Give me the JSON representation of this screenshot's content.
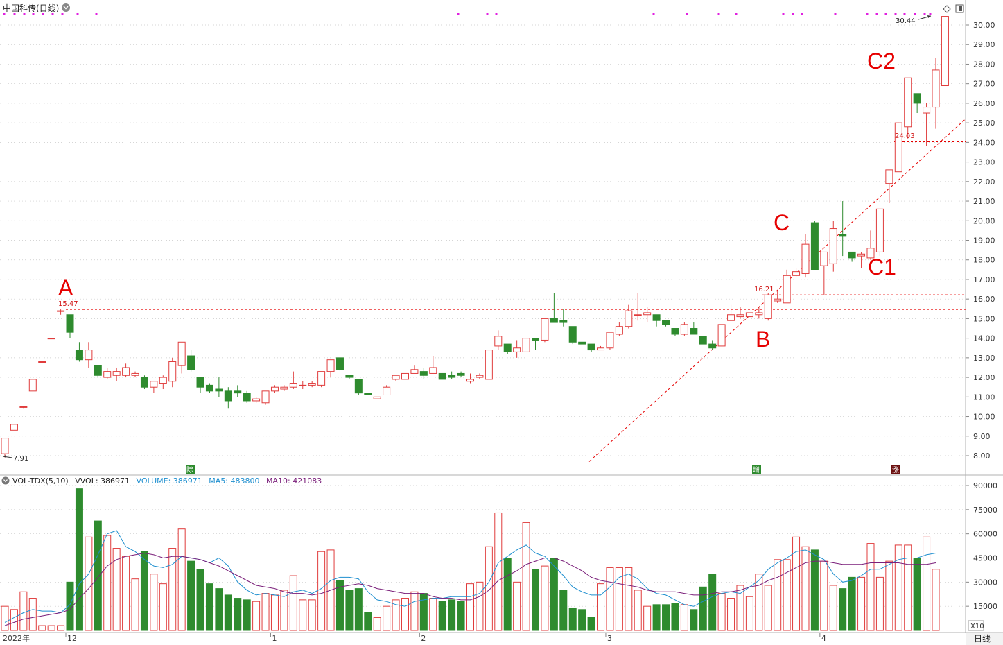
{
  "header": {
    "title": "中国科传(日线)",
    "period_label": "日线"
  },
  "volume_header": {
    "indicator": "VOL-TDX(5,10)",
    "vvol": "VVOL: 386971",
    "volume": "VOLUME: 386971",
    "ma5": "MA5: 483800",
    "ma10": "MA10: 421083"
  },
  "colors": {
    "up": "#e03c3c",
    "down": "#2e8b2e",
    "ma5": "#1f8fcf",
    "ma10": "#7a1f7a",
    "annotation": "#e60000",
    "marker": "#e020e0"
  },
  "chart_data": [
    {
      "type": "candlestick",
      "price_axis": {
        "ticks": [
          "30.00",
          "29.00",
          "28.00",
          "27.00",
          "26.00",
          "25.00",
          "24.00",
          "23.00",
          "22.00",
          "21.00",
          "20.00",
          "19.00",
          "18.00",
          "17.00",
          "16.00",
          "15.00",
          "14.00",
          "13.00",
          "12.00",
          "11.00",
          "10.00",
          "9.00",
          "8.00"
        ],
        "ylim": [
          7.5,
          30.8
        ]
      },
      "time_axis": {
        "labels": [
          {
            "text": "2022年",
            "index": 0
          },
          {
            "text": "12",
            "index": 7
          },
          {
            "text": "1",
            "index": 29
          },
          {
            "text": "2",
            "index": 45
          },
          {
            "text": "3",
            "index": 65
          },
          {
            "text": "4",
            "index": 88
          }
        ]
      },
      "candles": [
        [
          8.1,
          7.91,
          8.9,
          8.9
        ],
        [
          9.3,
          9.3,
          9.6,
          9.6
        ],
        [
          10.5,
          10.4,
          10.5,
          10.5
        ],
        [
          11.3,
          11.3,
          11.9,
          11.9
        ],
        [
          12.8,
          12.8,
          12.8,
          12.8
        ],
        [
          14.0,
          14.0,
          14.0,
          14.0
        ],
        [
          15.4,
          15.2,
          15.47,
          15.4
        ],
        [
          15.2,
          14.0,
          15.2,
          14.3
        ],
        [
          13.4,
          12.8,
          13.8,
          12.9
        ],
        [
          12.9,
          12.5,
          13.8,
          13.4
        ],
        [
          12.6,
          12.0,
          12.6,
          12.1
        ],
        [
          12.0,
          11.9,
          12.5,
          12.3
        ],
        [
          12.1,
          11.8,
          12.5,
          12.3
        ],
        [
          12.1,
          12.0,
          12.7,
          12.5
        ],
        [
          12.1,
          12.0,
          12.3,
          12.2
        ],
        [
          12.0,
          11.4,
          12.1,
          11.5
        ],
        [
          11.5,
          11.2,
          11.8,
          11.8
        ],
        [
          11.7,
          11.4,
          12.1,
          12.0
        ],
        [
          11.8,
          11.5,
          13.0,
          12.8
        ],
        [
          12.6,
          12.2,
          13.8,
          13.8
        ],
        [
          13.1,
          12.3,
          13.4,
          12.4
        ],
        [
          12.0,
          11.2,
          12.0,
          11.5
        ],
        [
          11.6,
          11.2,
          11.7,
          11.3
        ],
        [
          11.4,
          11.0,
          12.0,
          11.3
        ],
        [
          11.3,
          10.4,
          11.5,
          10.8
        ],
        [
          11.3,
          11.0,
          11.6,
          11.2
        ],
        [
          11.2,
          10.7,
          11.3,
          10.8
        ],
        [
          10.8,
          10.7,
          11.0,
          10.9
        ],
        [
          10.7,
          10.6,
          11.3,
          11.3
        ],
        [
          11.3,
          11.2,
          11.6,
          11.5
        ],
        [
          11.4,
          11.3,
          11.6,
          11.5
        ],
        [
          11.5,
          11.4,
          12.3,
          11.7
        ],
        [
          11.6,
          11.4,
          11.8,
          11.6
        ],
        [
          11.6,
          11.5,
          11.8,
          11.7
        ],
        [
          11.6,
          11.5,
          12.3,
          12.3
        ],
        [
          12.3,
          12.0,
          12.8,
          12.9
        ],
        [
          13.0,
          12.3,
          13.0,
          12.4
        ],
        [
          12.1,
          11.9,
          12.1,
          12.0
        ],
        [
          11.9,
          11.1,
          11.9,
          11.2
        ],
        [
          11.2,
          11.1,
          11.2,
          11.1
        ],
        [
          10.9,
          10.9,
          11.0,
          11.0
        ],
        [
          11.1,
          11.1,
          11.6,
          11.5
        ],
        [
          11.9,
          11.8,
          12.0,
          12.1
        ],
        [
          11.9,
          11.9,
          12.3,
          12.2
        ],
        [
          12.2,
          12.2,
          12.6,
          12.4
        ],
        [
          12.3,
          11.9,
          12.5,
          12.1
        ],
        [
          12.2,
          12.2,
          13.1,
          12.5
        ],
        [
          12.2,
          11.9,
          12.2,
          11.9
        ],
        [
          12.1,
          11.9,
          12.3,
          12.0
        ],
        [
          12.2,
          12.0,
          12.3,
          12.1
        ],
        [
          11.8,
          11.7,
          12.2,
          11.9
        ],
        [
          12.0,
          11.9,
          12.2,
          12.1
        ],
        [
          11.9,
          11.9,
          13.4,
          13.4
        ],
        [
          13.6,
          13.4,
          14.4,
          14.1
        ],
        [
          13.7,
          13.2,
          13.7,
          13.3
        ],
        [
          13.3,
          13.0,
          13.9,
          13.5
        ],
        [
          13.3,
          13.3,
          14.0,
          14.0
        ],
        [
          14.0,
          13.4,
          14.0,
          13.9
        ],
        [
          13.9,
          13.8,
          15.0,
          15.0
        ],
        [
          15.0,
          14.8,
          16.3,
          14.8
        ],
        [
          14.9,
          14.6,
          15.5,
          14.8
        ],
        [
          14.6,
          13.7,
          14.6,
          13.8
        ],
        [
          13.8,
          13.7,
          13.8,
          13.7
        ],
        [
          13.7,
          13.3,
          13.7,
          13.4
        ],
        [
          13.4,
          13.4,
          13.6,
          13.5
        ],
        [
          13.5,
          13.4,
          14.3,
          14.3
        ],
        [
          14.2,
          14.1,
          14.8,
          14.6
        ],
        [
          14.6,
          14.5,
          15.7,
          15.4
        ],
        [
          15.2,
          14.9,
          16.3,
          15.2
        ],
        [
          15.2,
          14.8,
          15.6,
          15.3
        ],
        [
          15.2,
          14.6,
          15.2,
          14.9
        ],
        [
          14.9,
          14.6,
          14.9,
          14.7
        ],
        [
          14.5,
          14.1,
          14.5,
          14.2
        ],
        [
          14.2,
          14.1,
          14.8,
          14.7
        ],
        [
          14.5,
          14.2,
          14.8,
          14.2
        ],
        [
          14.1,
          13.7,
          14.1,
          13.7
        ],
        [
          13.7,
          13.4,
          13.9,
          13.5
        ],
        [
          13.6,
          13.6,
          14.7,
          14.7
        ],
        [
          14.9,
          14.9,
          15.7,
          15.2
        ],
        [
          15.1,
          15.0,
          15.6,
          15.2
        ],
        [
          15.1,
          15.1,
          15.3,
          15.3
        ],
        [
          15.2,
          15.0,
          15.6,
          15.3
        ],
        [
          15.0,
          14.9,
          16.3,
          16.21
        ],
        [
          15.9,
          15.8,
          16.4,
          16.0
        ],
        [
          15.8,
          15.8,
          17.5,
          17.2
        ],
        [
          17.2,
          17.1,
          17.6,
          17.4
        ],
        [
          17.3,
          17.1,
          19.3,
          18.8
        ],
        [
          19.9,
          17.5,
          20.0,
          17.5
        ],
        [
          17.7,
          16.2,
          18.4,
          18.4
        ],
        [
          17.8,
          17.4,
          20.0,
          19.6
        ],
        [
          19.3,
          18.2,
          21.0,
          19.2
        ],
        [
          18.4,
          17.9,
          18.4,
          18.1
        ],
        [
          18.2,
          17.6,
          18.4,
          18.3
        ],
        [
          18.1,
          18.0,
          19.5,
          18.6
        ],
        [
          18.4,
          18.2,
          20.6,
          20.6
        ],
        [
          21.9,
          20.9,
          22.6,
          22.6
        ],
        [
          22.5,
          22.5,
          25.0,
          25.0
        ],
        [
          24.8,
          24.2,
          27.3,
          27.3
        ],
        [
          26.5,
          25.5,
          26.5,
          26.0
        ],
        [
          25.5,
          23.8,
          26.0,
          25.8
        ],
        [
          25.8,
          24.7,
          28.3,
          27.7
        ],
        [
          26.9,
          26.9,
          30.44,
          30.44
        ]
      ],
      "annotations": [
        "A",
        "B",
        "C",
        "C1",
        "C2"
      ],
      "price_labels": [
        "15.47",
        "16.21",
        "24.03",
        "30.44",
        "7.91"
      ],
      "event_markers": [
        "除",
        "增",
        "涨"
      ],
      "levels": [
        15.47,
        16.21,
        24.03
      ]
    },
    {
      "type": "bar",
      "title": "VOL-TDX(5,10)",
      "y_ticks": [
        "90000",
        "75000",
        "60000",
        "45000",
        "30000",
        "15000"
      ],
      "ylim": [
        0,
        90000
      ],
      "unit_label": "X10",
      "volumes": [
        15000,
        13000,
        24000,
        20000,
        3000,
        3000,
        3000,
        30000,
        88000,
        58000,
        68000,
        59000,
        51000,
        46000,
        32000,
        49000,
        35000,
        29000,
        51000,
        63000,
        43000,
        38000,
        29000,
        26000,
        22000,
        20000,
        19000,
        18000,
        23000,
        22000,
        25000,
        34000,
        19000,
        19000,
        49000,
        50000,
        31000,
        25000,
        26000,
        11000,
        8000,
        15000,
        19000,
        20000,
        24000,
        23000,
        20000,
        18000,
        19000,
        18000,
        29000,
        30000,
        52000,
        73000,
        45000,
        30000,
        67000,
        38000,
        40000,
        45000,
        25000,
        14000,
        13000,
        8000,
        29000,
        39000,
        39000,
        39000,
        25000,
        15000,
        16000,
        16000,
        17000,
        16000,
        13000,
        27000,
        35000,
        23000,
        20000,
        28000,
        21000,
        35000,
        28000,
        44000,
        44000,
        58000,
        52000,
        50000,
        43000,
        28000,
        26000,
        33000,
        33000,
        54000,
        33000,
        43000,
        53000,
        53000,
        45000,
        58000,
        38000
      ],
      "ma5": [
        5000,
        8000,
        11000,
        13000,
        12000,
        12000,
        11000,
        16000,
        29000,
        35000,
        47000,
        60000,
        62000,
        52000,
        49000,
        44000,
        40000,
        39000,
        41000,
        46000,
        45000,
        44000,
        42000,
        45000,
        40000,
        30000,
        25000,
        22000,
        23000,
        22000,
        21000,
        24000,
        25000,
        23000,
        26000,
        31000,
        33000,
        33000,
        32000,
        24000,
        19000,
        18000,
        16000,
        15000,
        18000,
        19000,
        20000,
        20000,
        21000,
        21000,
        21000,
        23000,
        30000,
        42000,
        46000,
        50000,
        53000,
        48000,
        46000,
        40000,
        34000,
        27000,
        24000,
        22000,
        22000,
        27000,
        33000,
        35000,
        32000,
        26000,
        23000,
        22000,
        19000,
        16000,
        15000,
        18000,
        21000,
        23000,
        24000,
        23000,
        27000,
        31000,
        38000,
        42000,
        45000,
        49000,
        50000,
        47000,
        44000,
        35000,
        30000,
        31000,
        34000,
        38000,
        38000,
        41000,
        44000,
        45000,
        45000,
        47000,
        48000
      ],
      "ma10": [
        3000,
        5000,
        7000,
        8000,
        9000,
        10000,
        11000,
        13000,
        20000,
        26000,
        33000,
        40000,
        44000,
        46000,
        47000,
        48000,
        47000,
        45000,
        46000,
        46000,
        45000,
        44000,
        42000,
        40000,
        37000,
        34000,
        31000,
        28000,
        27000,
        26000,
        24000,
        23000,
        23000,
        22000,
        23000,
        25000,
        27000,
        28000,
        29000,
        28000,
        26000,
        25000,
        24000,
        23000,
        23000,
        23000,
        21000,
        20000,
        20000,
        19000,
        19000,
        21000,
        25000,
        31000,
        34000,
        37000,
        41000,
        43000,
        45000,
        45000,
        43000,
        40000,
        37000,
        33000,
        31000,
        30000,
        29000,
        28000,
        27000,
        25000,
        24000,
        24000,
        24000,
        23000,
        22000,
        22000,
        23000,
        24000,
        24000,
        25000,
        27000,
        28000,
        31000,
        33000,
        36000,
        39000,
        42000,
        43000,
        43000,
        42000,
        41000,
        41000,
        41000,
        42000,
        42000,
        42000,
        42000,
        41000,
        41000,
        41000,
        42000
      ]
    }
  ]
}
